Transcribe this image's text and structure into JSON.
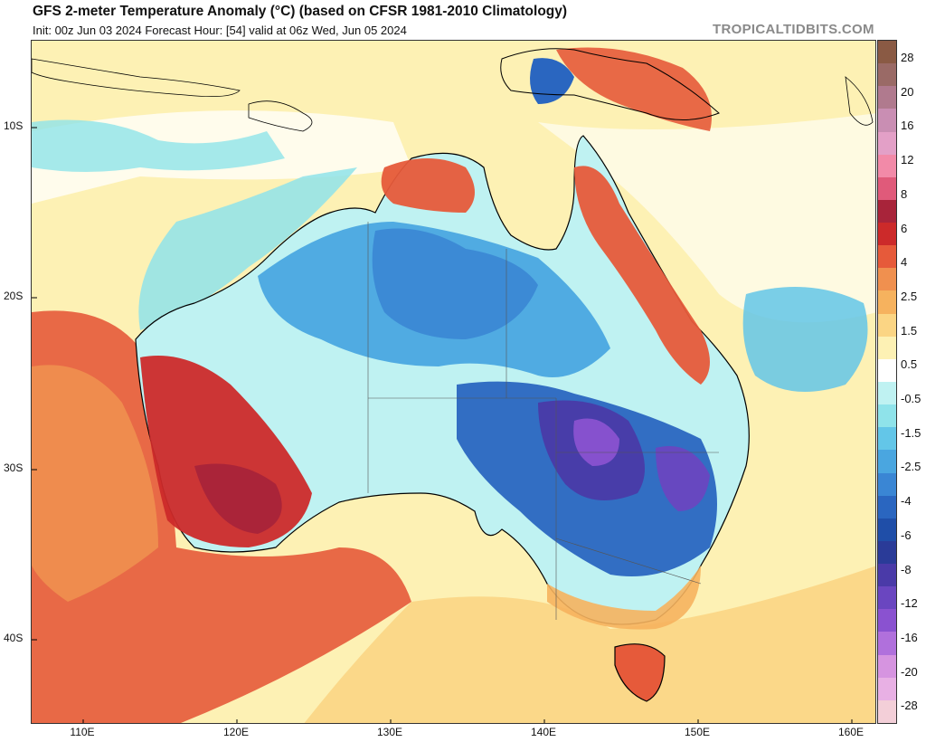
{
  "header": {
    "title": "GFS 2-meter Temperature Anomaly (°C) (based on CFSR 1981-2010 Climatology)",
    "subtitle": "Init: 00z Jun 03 2024   Forecast Hour: [54]   valid at 06z Wed, Jun 05 2024",
    "brand": "TROPICALTIDBITS.COM"
  },
  "axes": {
    "lat_labels": [
      "10S",
      "20S",
      "30S",
      "40S"
    ],
    "lon_labels": [
      "110E",
      "120E",
      "130E",
      "140E",
      "150E",
      "160E"
    ]
  },
  "colorbar": {
    "labels": [
      "28",
      "20",
      "16",
      "12",
      "8",
      "6",
      "4",
      "2.5",
      "1.5",
      "0.5",
      "-0.5",
      "-1.5",
      "-2.5",
      "-4",
      "-6",
      "-8",
      "-12",
      "-16",
      "-20",
      "-28"
    ],
    "colors": [
      "#8a5a44",
      "#9a6a66",
      "#b07a8e",
      "#c98eb3",
      "#e3a0c7",
      "#f28aa8",
      "#e05a7a",
      "#a8243a",
      "#cc2a2a",
      "#e65a3a",
      "#f0904f",
      "#f6b25e",
      "#fbd584",
      "#fdf1b4",
      "#ffffff",
      "#bff2f2",
      "#8fe3ea",
      "#63c6e8",
      "#4aa6e0",
      "#3a86d4",
      "#2a66c0",
      "#1f4ea8",
      "#2a3b98",
      "#4a3aa8",
      "#6a46c0",
      "#8a52d0",
      "#b070dc",
      "#d694e0",
      "#e8b0e4",
      "#f3cfd8"
    ]
  },
  "map_colors": {
    "ocean_base": "#fdf6d6",
    "land_outline": "#000000"
  }
}
